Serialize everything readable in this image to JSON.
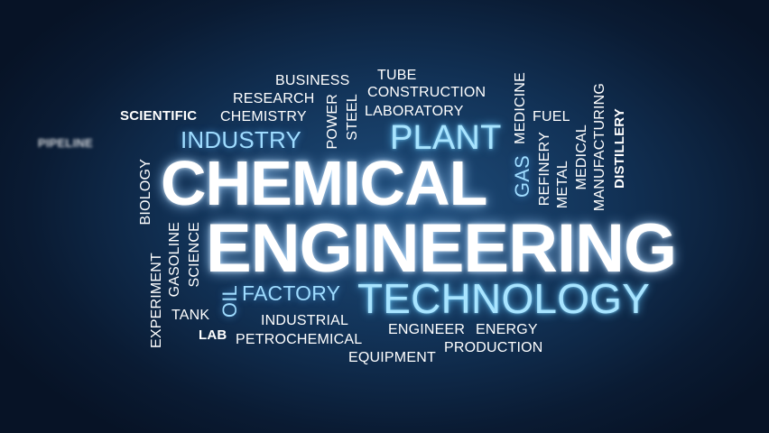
{
  "words": {
    "chemical": "CHEMICAL",
    "engineering": "ENGINEERING",
    "technology": "TECHNOLOGY",
    "plant": "PLANT",
    "industry": "INDUSTRY",
    "factory": "FACTORY",
    "gas": "GAS",
    "oil": "OIL",
    "business": "BUSINESS",
    "research": "RESEARCH",
    "chemistry": "CHEMISTRY",
    "scientific": "SCIENTIFIC",
    "tube": "TUBE",
    "construction": "CONSTRUCTION",
    "laboratory": "LABORATORY",
    "power": "POWER",
    "steel": "STEEL",
    "medicine": "MEDICINE",
    "fuel": "FUEL",
    "refinery": "REFINERY",
    "metal": "METAL",
    "medical": "MEDICAL",
    "manufacturing": "MANUFACTURING",
    "distillery": "DISTILLERY",
    "pipeline": "PIPELINE",
    "biology": "BIOLOGY",
    "experiment": "EXPERIMENT",
    "gasoline": "GASOLINE",
    "science": "SCIENCE",
    "tank": "TANK",
    "lab": "LAB",
    "industrial": "INDUSTRIAL",
    "petrochemical": "PETROCHEMICAL",
    "equipment": "EQUIPMENT",
    "engineer": "ENGINEER",
    "energy": "ENERGY",
    "production": "PRODUCTION"
  },
  "colors": {
    "background_center": "#1f4e7d",
    "background_edge": "#071326",
    "highlight_blue": "#9fdcff",
    "text_white": "#ffffff"
  }
}
